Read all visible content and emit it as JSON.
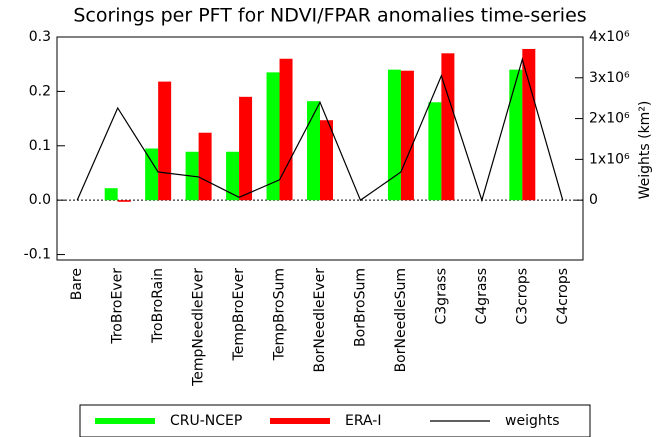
{
  "chart_data": {
    "type": "bar",
    "title": "Scorings per PFT for NDVI/FPAR anomalies time-series",
    "y2_label": "Weights (km²)",
    "categories": [
      "Bare",
      "TroBroEver",
      "TroBroRain",
      "TempNeedleEver",
      "TempBroEver",
      "TempBroSum",
      "BorNeedleEver",
      "BorBroSum",
      "BorNeedleSum",
      "C3grass",
      "C4grass",
      "C3crops",
      "C4crops"
    ],
    "series": [
      {
        "name": "CRU-NCEP",
        "color": "#00ff00",
        "values": [
          null,
          0.022,
          0.095,
          0.089,
          0.089,
          0.235,
          0.182,
          null,
          0.24,
          0.18,
          null,
          0.24,
          null
        ]
      },
      {
        "name": "ERA-I",
        "color": "#ff0000",
        "values": [
          null,
          -0.003,
          0.218,
          0.124,
          0.19,
          0.26,
          0.147,
          null,
          0.238,
          0.27,
          null,
          0.278,
          null
        ]
      },
      {
        "name": "weights",
        "color": "#000000",
        "type": "line",
        "axis": "y2",
        "values": [
          0,
          2260000,
          690000,
          570000,
          70000,
          500000,
          2400000,
          0,
          690000,
          3050000,
          0,
          3450000,
          0
        ]
      }
    ],
    "ylim": [
      -0.11,
      0.3
    ],
    "yticks": [
      {
        "value": -0.1,
        "label": "-0.1"
      },
      {
        "value": 0,
        "label": "0.0"
      },
      0.1,
      0.2,
      0.3
    ],
    "y2lim": [
      -1466667,
      4000000
    ],
    "y2ticks": [
      0,
      {
        "value": 1000000,
        "label": "1x10⁶"
      },
      {
        "value": 2000000,
        "label": "2x10⁶"
      },
      {
        "value": 3000000,
        "label": "3x10⁶"
      },
      {
        "value": 4000000,
        "label": "4x10⁶"
      }
    ],
    "legend": "bottom"
  }
}
